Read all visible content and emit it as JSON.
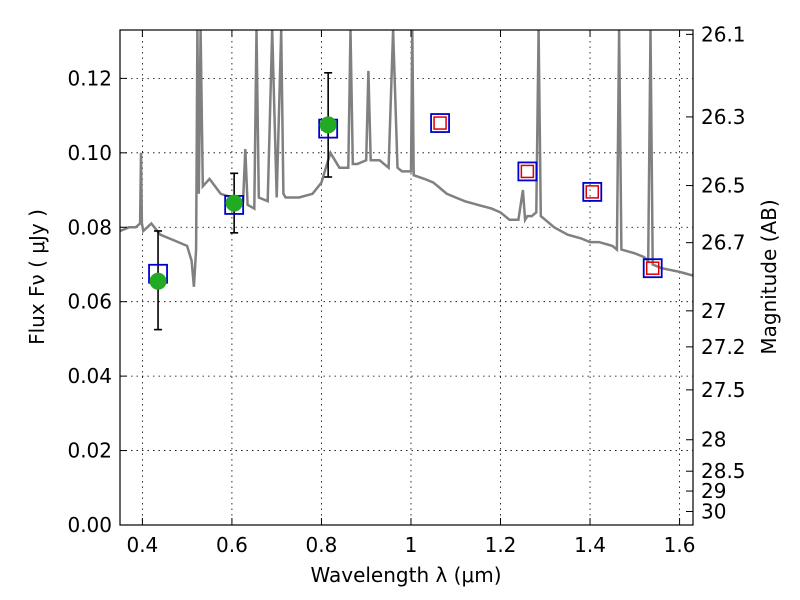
{
  "chart_data": {
    "type": "scatter",
    "xlabel": "Wavelength  λ (μm)",
    "ylabel": "Flux  Fν  ( μJy )",
    "ylabel_right": "Magnitude (AB)",
    "xlim": [
      0.35,
      1.63
    ],
    "ylim": [
      0.0,
      0.133
    ],
    "x_ticks": [
      0.4,
      0.6,
      0.8,
      1.0,
      1.2,
      1.4,
      1.6
    ],
    "x_tick_labels": [
      "0.4",
      "0.6",
      "0.8",
      "1",
      "1.2",
      "1.4",
      "1.6"
    ],
    "y_ticks": [
      0.0,
      0.02,
      0.04,
      0.06,
      0.08,
      0.1,
      0.12
    ],
    "y_tick_labels": [
      "0.00",
      "0.02",
      "0.04",
      "0.06",
      "0.08",
      "0.10",
      "0.12"
    ],
    "right_ticks": [
      26.1,
      26.3,
      26.5,
      26.7,
      27,
      27.2,
      27.5,
      28,
      28.5,
      29,
      30
    ],
    "right_tick_labels": [
      "26.1",
      "26.3",
      "26.5",
      "26.7",
      "27",
      "27.2",
      "27.5",
      "28",
      "28.5",
      "29",
      "30"
    ],
    "grid": true,
    "colors": {
      "spectrum": "#808080",
      "model_box": "#0000cc",
      "upper_limit_box": "#dd0000",
      "observed": "#22aa22",
      "errorbar": "#000000"
    },
    "series": [
      {
        "name": "model spectrum",
        "kind": "line",
        "x": [
          0.35,
          0.37,
          0.385,
          0.395,
          0.397,
          0.399,
          0.402,
          0.42,
          0.44,
          0.46,
          0.48,
          0.5,
          0.51,
          0.515,
          0.52,
          0.523,
          0.526,
          0.53,
          0.535,
          0.55,
          0.575,
          0.6,
          0.625,
          0.63,
          0.635,
          0.65,
          0.655,
          0.66,
          0.68,
          0.69,
          0.7,
          0.71,
          0.715,
          0.72,
          0.75,
          0.78,
          0.8,
          0.82,
          0.84,
          0.86,
          0.865,
          0.87,
          0.88,
          0.9,
          0.905,
          0.91,
          0.93,
          0.95,
          0.96,
          0.97,
          0.98,
          1.0,
          1.003,
          1.006,
          1.03,
          1.05,
          1.07,
          1.08,
          1.1,
          1.12,
          1.15,
          1.18,
          1.2,
          1.22,
          1.24,
          1.25,
          1.255,
          1.26,
          1.27,
          1.28,
          1.285,
          1.29,
          1.3,
          1.32,
          1.35,
          1.38,
          1.4,
          1.42,
          1.45,
          1.46,
          1.465,
          1.47,
          1.5,
          1.52,
          1.53,
          1.535,
          1.54,
          1.56,
          1.6,
          1.63
        ],
        "y": [
          0.079,
          0.08,
          0.08,
          0.081,
          0.1,
          0.081,
          0.079,
          0.081,
          0.078,
          0.077,
          0.076,
          0.075,
          0.071,
          0.064,
          0.074,
          0.133,
          0.089,
          0.133,
          0.091,
          0.093,
          0.089,
          0.088,
          0.087,
          0.101,
          0.086,
          0.085,
          0.133,
          0.088,
          0.087,
          0.133,
          0.088,
          0.133,
          0.089,
          0.088,
          0.088,
          0.089,
          0.092,
          0.1,
          0.096,
          0.096,
          0.133,
          0.097,
          0.097,
          0.098,
          0.122,
          0.098,
          0.098,
          0.096,
          0.133,
          0.096,
          0.095,
          0.095,
          0.133,
          0.094,
          0.093,
          0.092,
          0.09,
          0.089,
          0.088,
          0.087,
          0.086,
          0.085,
          0.084,
          0.082,
          0.082,
          0.09,
          0.082,
          0.083,
          0.083,
          0.084,
          0.133,
          0.083,
          0.082,
          0.08,
          0.078,
          0.077,
          0.076,
          0.076,
          0.075,
          0.074,
          0.133,
          0.074,
          0.073,
          0.072,
          0.071,
          0.133,
          0.07,
          0.069,
          0.068,
          0.067
        ]
      },
      {
        "name": "model photometry",
        "kind": "box",
        "x": [
          0.435,
          0.605,
          0.815,
          1.065,
          1.26,
          1.405,
          1.54
        ],
        "y": [
          0.0675,
          0.086,
          0.1065,
          0.108,
          0.095,
          0.0895,
          0.069
        ]
      },
      {
        "name": "upper limits",
        "kind": "box",
        "x": [
          1.065,
          1.26,
          1.405,
          1.54
        ],
        "y": [
          0.108,
          0.095,
          0.0895,
          0.069
        ]
      },
      {
        "name": "observed",
        "kind": "point",
        "x": [
          0.435,
          0.605,
          0.815
        ],
        "y": [
          0.0655,
          0.0865,
          0.1075
        ],
        "err_low": [
          0.0525,
          0.0785,
          0.0935
        ],
        "err_high": [
          0.079,
          0.0945,
          0.1215
        ]
      }
    ]
  }
}
